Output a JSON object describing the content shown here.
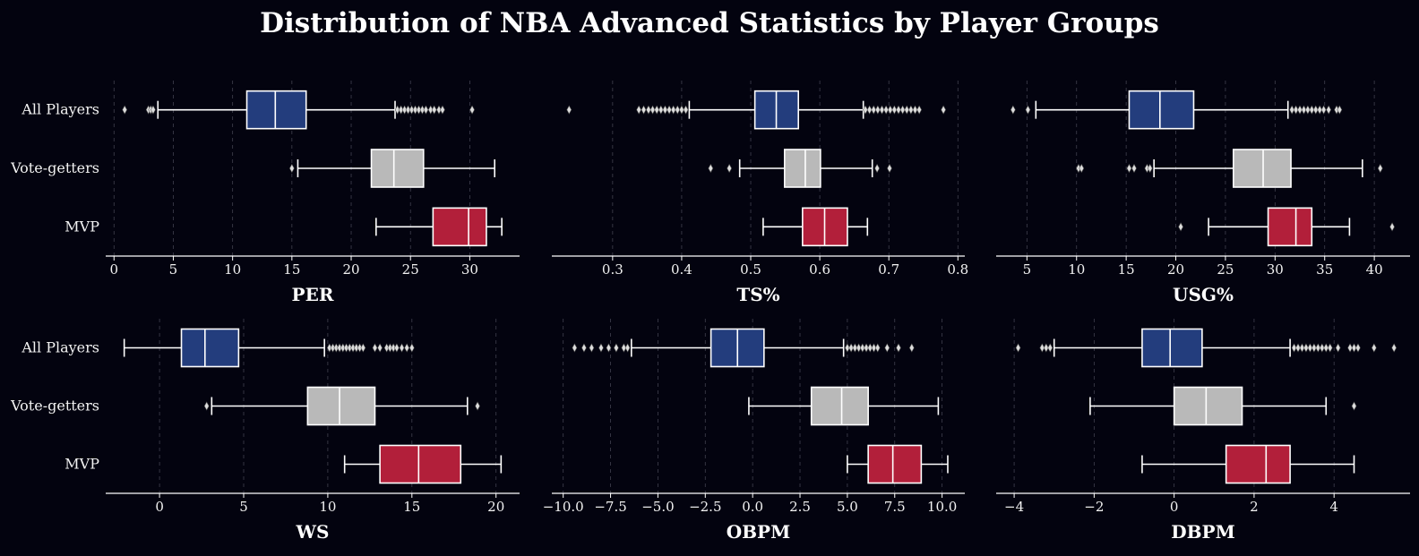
{
  "title": "Distribution of NBA Advanced Statistics by Player Groups",
  "groups": [
    "All Players",
    "Vote-getters",
    "MVP"
  ],
  "colors": {
    "background": "#03030f",
    "All Players": "#233d7d",
    "Vote-getters": "#b9b9b9",
    "MVP": "#b21f3a",
    "lines": "#ffffff",
    "text": "#f2f2f2",
    "grid": "#5a5a6a"
  },
  "chart_data": [
    {
      "type": "box",
      "xlabel": "PER",
      "xlim": [
        -0.7,
        34.2
      ],
      "ticks": [
        0,
        5,
        10,
        15,
        20,
        25,
        30
      ],
      "tick_labels": [
        "0",
        "5",
        "10",
        "15",
        "20",
        "25",
        "30"
      ],
      "grid": "vertical-dashed",
      "boxes": [
        {
          "group": "All Players",
          "whislo": 3.7,
          "q1": 11.2,
          "med": 13.6,
          "q3": 16.2,
          "whishi": 23.7,
          "fliers": [
            0.9,
            2.9,
            3.1,
            3.3,
            23.9,
            24.2,
            24.5,
            24.8,
            25.1,
            25.4,
            25.7,
            26.0,
            26.3,
            26.7,
            27.0,
            27.4,
            27.7,
            30.2
          ]
        },
        {
          "group": "Vote-getters",
          "whislo": 15.5,
          "q1": 21.7,
          "med": 23.6,
          "q3": 26.1,
          "whishi": 32.1,
          "fliers": [
            15.0
          ]
        },
        {
          "group": "MVP",
          "whislo": 22.1,
          "q1": 26.9,
          "med": 29.9,
          "q3": 31.4,
          "whishi": 32.7,
          "fliers": []
        }
      ]
    },
    {
      "type": "box",
      "xlabel": "TS%",
      "xlim": [
        0.212,
        0.81
      ],
      "ticks": [
        0.3,
        0.4,
        0.5,
        0.6,
        0.7,
        0.8
      ],
      "tick_labels": [
        "0.3",
        "0.4",
        "0.5",
        "0.6",
        "0.7",
        "0.8"
      ],
      "grid": "vertical-dashed",
      "boxes": [
        {
          "group": "All Players",
          "whislo": 0.411,
          "q1": 0.506,
          "med": 0.537,
          "q3": 0.569,
          "whishi": 0.663,
          "fliers": [
            0.237,
            0.338,
            0.345,
            0.352,
            0.358,
            0.364,
            0.37,
            0.376,
            0.382,
            0.388,
            0.394,
            0.4,
            0.406,
            0.666,
            0.672,
            0.678,
            0.684,
            0.69,
            0.696,
            0.702,
            0.708,
            0.714,
            0.72,
            0.726,
            0.732,
            0.738,
            0.744,
            0.779
          ]
        },
        {
          "group": "Vote-getters",
          "whislo": 0.484,
          "q1": 0.549,
          "med": 0.579,
          "q3": 0.601,
          "whishi": 0.676,
          "fliers": [
            0.442,
            0.469,
            0.683,
            0.701
          ]
        },
        {
          "group": "MVP",
          "whislo": 0.518,
          "q1": 0.575,
          "med": 0.607,
          "q3": 0.64,
          "whishi": 0.669,
          "fliers": []
        }
      ]
    },
    {
      "type": "box",
      "xlabel": "USG%",
      "xlim": [
        1.9,
        43.6
      ],
      "ticks": [
        5,
        10,
        15,
        20,
        25,
        30,
        35,
        40
      ],
      "tick_labels": [
        "5",
        "10",
        "15",
        "20",
        "25",
        "30",
        "35",
        "40"
      ],
      "grid": "vertical-dashed",
      "boxes": [
        {
          "group": "All Players",
          "whislo": 5.9,
          "q1": 15.3,
          "med": 18.4,
          "q3": 21.8,
          "whishi": 31.3,
          "fliers": [
            3.6,
            5.1,
            31.7,
            32.1,
            32.5,
            32.9,
            33.3,
            33.7,
            34.1,
            34.5,
            34.9,
            35.4,
            36.2,
            36.5
          ]
        },
        {
          "group": "Vote-getters",
          "whislo": 17.8,
          "q1": 25.8,
          "med": 28.8,
          "q3": 31.6,
          "whishi": 38.8,
          "fliers": [
            10.2,
            10.5,
            15.3,
            15.8,
            17.1,
            17.4,
            40.6
          ]
        },
        {
          "group": "MVP",
          "whislo": 23.3,
          "q1": 29.3,
          "med": 32.1,
          "q3": 33.7,
          "whishi": 37.5,
          "fliers": [
            20.5,
            41.8
          ]
        }
      ]
    },
    {
      "type": "box",
      "xlabel": "WS",
      "xlim": [
        -3.2,
        21.4
      ],
      "ticks": [
        0,
        5,
        10,
        15,
        20
      ],
      "tick_labels": [
        "0",
        "5",
        "10",
        "15",
        "20"
      ],
      "grid": "vertical-dashed",
      "boxes": [
        {
          "group": "All Players",
          "whislo": -2.1,
          "q1": 1.3,
          "med": 2.7,
          "q3": 4.7,
          "whishi": 9.8,
          "fliers": [
            10.1,
            10.3,
            10.5,
            10.7,
            10.9,
            11.1,
            11.3,
            11.5,
            11.7,
            11.9,
            12.1,
            12.8,
            13.1,
            13.5,
            13.7,
            13.9,
            14.1,
            14.4,
            14.7,
            15.0
          ]
        },
        {
          "group": "Vote-getters",
          "whislo": 3.1,
          "q1": 8.8,
          "med": 10.7,
          "q3": 12.8,
          "whishi": 18.3,
          "fliers": [
            2.8,
            18.9
          ]
        },
        {
          "group": "MVP",
          "whislo": 11.0,
          "q1": 13.1,
          "med": 15.4,
          "q3": 17.9,
          "whishi": 20.3,
          "fliers": []
        }
      ]
    },
    {
      "type": "box",
      "xlabel": "OBPM",
      "xlim": [
        -10.6,
        11.2
      ],
      "ticks": [
        -10,
        -7.5,
        -5,
        -2.5,
        0,
        2.5,
        5,
        7.5,
        10
      ],
      "tick_labels": [
        "−10.0",
        "−7.5",
        "−5.0",
        "−2.5",
        "0.0",
        "2.5",
        "5.0",
        "7.5",
        "10.0"
      ],
      "grid": "vertical-dashed",
      "boxes": [
        {
          "group": "All Players",
          "whislo": -6.4,
          "q1": -2.2,
          "med": -0.8,
          "q3": 0.6,
          "whishi": 4.8,
          "fliers": [
            -9.4,
            -8.9,
            -8.5,
            -8.0,
            -7.6,
            -7.2,
            -6.8,
            -6.6,
            5.0,
            5.2,
            5.4,
            5.6,
            5.8,
            6.0,
            6.2,
            6.4,
            6.6,
            7.1,
            7.7,
            8.4
          ]
        },
        {
          "group": "Vote-getters",
          "whislo": -0.2,
          "q1": 3.1,
          "med": 4.7,
          "q3": 6.1,
          "whishi": 9.8,
          "fliers": []
        },
        {
          "group": "MVP",
          "whislo": 5.0,
          "q1": 6.1,
          "med": 7.4,
          "q3": 8.9,
          "whishi": 10.3,
          "fliers": []
        }
      ]
    },
    {
      "type": "box",
      "xlabel": "DBPM",
      "xlim": [
        -4.45,
        5.9
      ],
      "ticks": [
        -4,
        -2,
        0,
        2,
        4
      ],
      "tick_labels": [
        "−4",
        "−2",
        "0",
        "2",
        "4"
      ],
      "grid": "vertical-dashed",
      "boxes": [
        {
          "group": "All Players",
          "whislo": -3.0,
          "q1": -0.8,
          "med": -0.1,
          "q3": 0.7,
          "whishi": 2.9,
          "fliers": [
            -3.9,
            -3.3,
            -3.2,
            -3.1,
            3.0,
            3.1,
            3.2,
            3.3,
            3.4,
            3.5,
            3.6,
            3.7,
            3.8,
            3.9,
            4.1,
            4.4,
            4.5,
            4.6,
            5.0,
            5.5
          ]
        },
        {
          "group": "Vote-getters",
          "whislo": -2.1,
          "q1": 0.0,
          "med": 0.8,
          "q3": 1.7,
          "whishi": 3.8,
          "fliers": [
            4.5
          ]
        },
        {
          "group": "MVP",
          "whislo": -0.8,
          "q1": 1.3,
          "med": 2.3,
          "q3": 2.9,
          "whishi": 4.5,
          "fliers": []
        }
      ]
    }
  ]
}
